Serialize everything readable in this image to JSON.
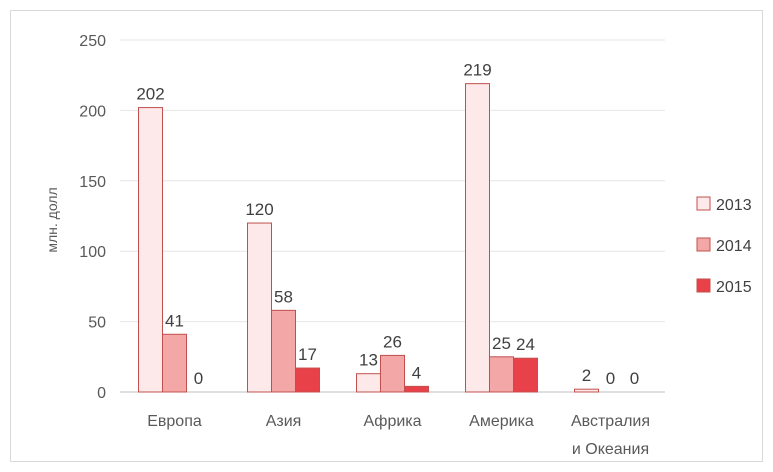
{
  "chart_data": {
    "type": "bar",
    "title": "",
    "xlabel": "",
    "ylabel": "млн. долл",
    "ylim": [
      0,
      250
    ],
    "yticks": [
      0,
      50,
      100,
      150,
      200,
      250
    ],
    "grid": true,
    "legend_position": "right",
    "categories": [
      [
        "Европа"
      ],
      [
        "Азия"
      ],
      [
        "Африка"
      ],
      [
        "Америка"
      ],
      [
        "Австралия",
        "и Океания"
      ]
    ],
    "series": [
      {
        "name": "2013",
        "values": [
          202,
          120,
          13,
          219,
          2
        ],
        "fill": "#fde9e9",
        "stroke": "#c0504d"
      },
      {
        "name": "2014",
        "values": [
          41,
          58,
          26,
          25,
          0
        ],
        "fill": "#f4a7a7",
        "stroke": "#c0504d"
      },
      {
        "name": "2015",
        "values": [
          0,
          17,
          4,
          24,
          0
        ],
        "fill": "#e8414a",
        "stroke": "#c0504d"
      }
    ]
  }
}
